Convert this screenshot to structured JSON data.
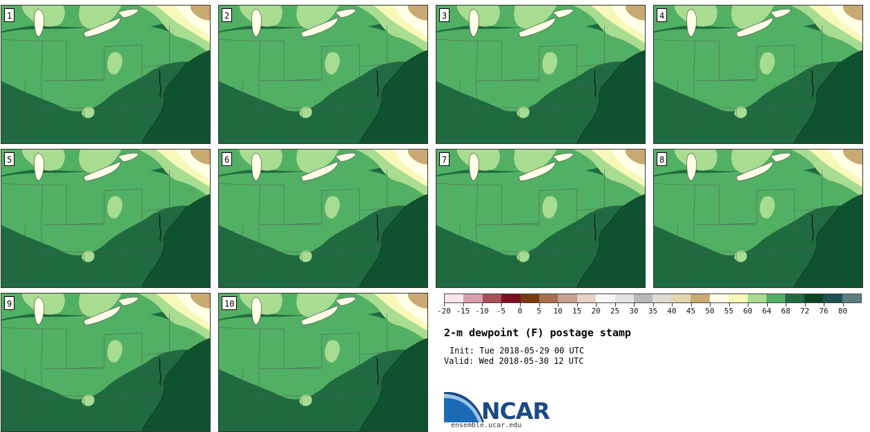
{
  "panels": [
    {
      "label": "1"
    },
    {
      "label": "2"
    },
    {
      "label": "3"
    },
    {
      "label": "4"
    },
    {
      "label": "5"
    },
    {
      "label": "6"
    },
    {
      "label": "7"
    },
    {
      "label": "8"
    },
    {
      "label": "9"
    },
    {
      "label": "10"
    }
  ],
  "legend": {
    "colors": [
      "#f6e7ec",
      "#d8a0ad",
      "#a65058",
      "#7a1020",
      "#7c3a10",
      "#a87050",
      "#c8a090",
      "#e6d2c6",
      "#f7f7f7",
      "#e2e2e2",
      "#b8b8b8",
      "#dedad2",
      "#e2d6b2",
      "#c8aa72",
      "#ffffe8",
      "#f8f8b8",
      "#a8dc90",
      "#52b064",
      "#1f6b3f",
      "#0b4526",
      "#1f5252",
      "#5a8080"
    ],
    "ticks": [
      "-20",
      "-15",
      "-10",
      "-5",
      "0",
      "5",
      "10",
      "15",
      "20",
      "25",
      "30",
      "35",
      "40",
      "45",
      "50",
      "55",
      "60",
      "64",
      "68",
      "72",
      "76",
      "80"
    ]
  },
  "title": "2-m dewpoint (F) postage stamp",
  "init": "Init: Tue 2018-05-29 00 UTC",
  "valid": "Valid: Wed 2018-05-30 12 UTC",
  "logo": {
    "text": "NCAR",
    "url": "ensemble.ucar.edu",
    "color": "#1a4a86",
    "accent": "#3a86c8"
  }
}
